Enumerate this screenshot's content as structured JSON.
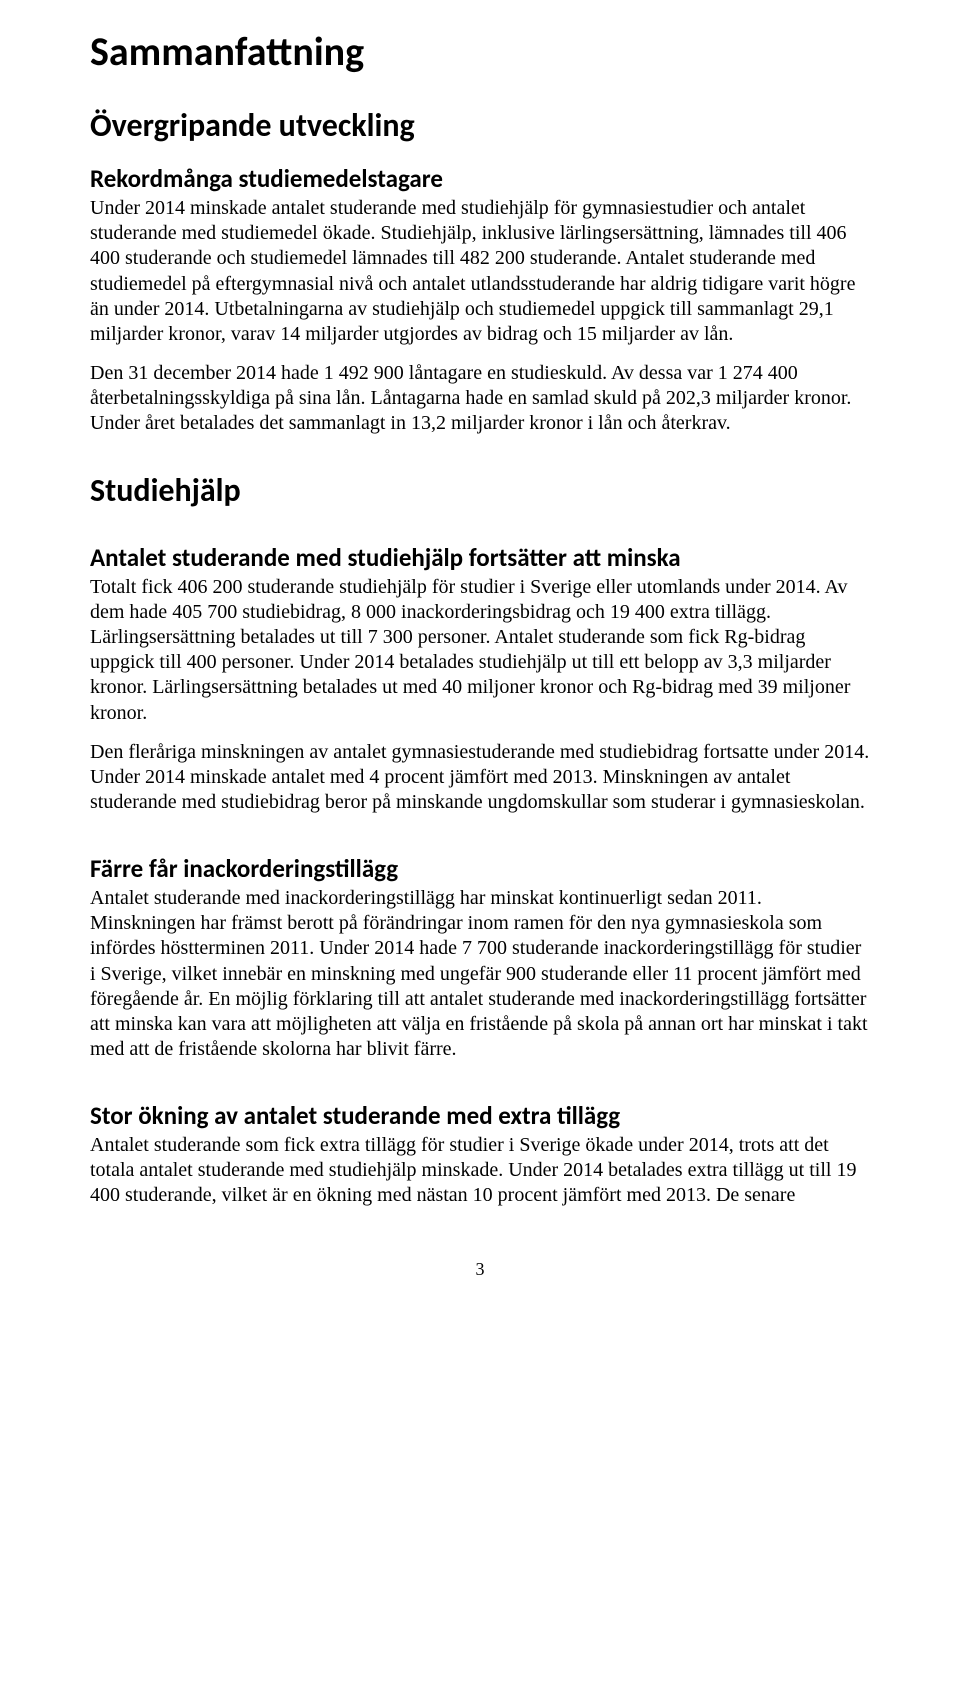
{
  "doc": {
    "title": "Sammanfattning",
    "page_number": "3",
    "h1_fontsize": 40,
    "h2_fontsize": 32,
    "h3_fontsize": 25,
    "body_fontsize": 20,
    "heading_font": "Calibri",
    "body_font": "Garamond",
    "background_color": "#ffffff",
    "text_color": "#000000",
    "sections": {
      "overgripande": {
        "title": "Övergripande utveckling",
        "sub1": {
          "title": "Rekordmånga studiemedelstagare",
          "p1": "Under 2014 minskade antalet studerande med studiehjälp för gymnasiestudier och antalet studerande med studiemedel ökade. Studiehjälp, inklusive lärlingsersättning, lämnades till 406 400 studerande och studiemedel lämnades till 482 200 studerande. Antalet studerande med studiemedel på eftergymnasial nivå och antalet utlandsstuderande har aldrig tidigare varit högre än under 2014. Utbetalningarna av studiehjälp och studiemedel uppgick till sammanlagt 29,1 miljarder kronor, varav 14 miljarder utgjordes av bidrag och 15 miljarder av lån.",
          "p2": "Den 31 december 2014 hade 1 492 900 låntagare en studieskuld. Av dessa var 1 274 400 återbetalningsskyldiga på sina lån. Låntagarna hade en samlad skuld på 202,3 miljarder kronor. Under året betalades det sammanlagt in 13,2 miljarder kronor i lån och återkrav."
        }
      },
      "studiehjalp": {
        "title": "Studiehjälp",
        "sub1": {
          "title": "Antalet studerande med studiehjälp fortsätter att minska",
          "p1": "Totalt fick 406 200 studerande studiehjälp för studier i Sverige eller utomlands under 2014. Av dem hade 405 700 studiebidrag, 8 000 inackorderingsbidrag och 19 400 extra tillägg. Lärlingsersättning betalades ut till 7 300 personer. Antalet studerande som fick Rg-bidrag uppgick till 400 personer. Under 2014 betalades studiehjälp ut till ett belopp av 3,3 miljarder kronor. Lärlingsersättning betalades ut med 40 miljoner kronor och Rg-bidrag med 39 miljoner kronor.",
          "p2": "Den fleråriga minskningen av antalet gymnasiestuderande med studiebidrag fortsatte under 2014. Under 2014 minskade antalet med 4 procent jämfört med 2013. Minskningen av antalet studerande med studiebidrag beror på minskande ungdomskullar som studerar i gymnasieskolan."
        },
        "sub2": {
          "title": "Färre får inackorderingstillägg",
          "p1": "Antalet studerande med inackorderingstillägg har minskat kontinuerligt sedan 2011. Minskningen har främst berott på förändringar inom ramen för den nya gymnasieskola som infördes höstterminen 2011. Under 2014 hade 7 700 studerande inackorderingstillägg för studier i Sverige, vilket innebär en minskning med ungefär 900 studerande eller 11 procent jämfört med föregående år. En möjlig förklaring till att antalet studerande med inackorderingstillägg fortsätter att minska kan vara att möjligheten att välja en fristående på skola på annan ort har minskat i takt med att de fristående skolorna har blivit färre."
        },
        "sub3": {
          "title": "Stor ökning av antalet studerande med extra tillägg",
          "p1": "Antalet studerande som fick extra tillägg för studier i Sverige ökade under 2014, trots att det totala antalet studerande med studiehjälp minskade. Under 2014 betalades extra tillägg ut till 19 400 studerande, vilket är en ökning med nästan 10 procent jämfört med 2013. De senare"
        }
      }
    }
  }
}
